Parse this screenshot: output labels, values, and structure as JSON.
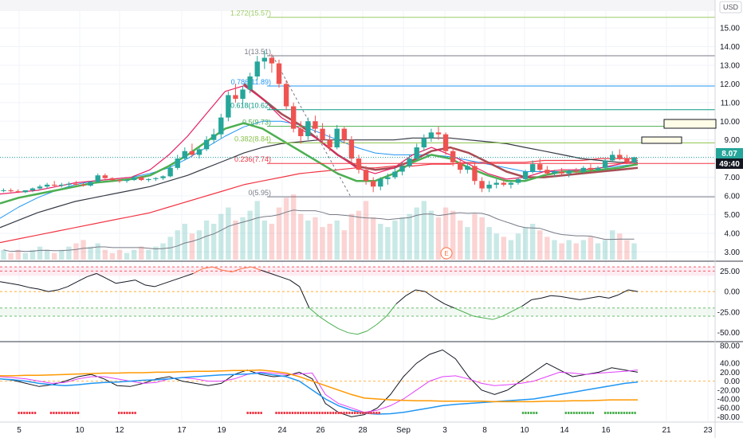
{
  "toolbar": {
    "currency": "USD"
  },
  "colors": {
    "up": "#26a69a",
    "down": "#ef5350",
    "ema_fast": "#e91e63",
    "ema_mid": "#4caf50",
    "ma_blue": "#2196f3",
    "ma_dark": "#363a45",
    "ma_red": "#f23645",
    "ma_brown": "#a84c54",
    "fib_gray": "#787b86",
    "fib_blue": "#2196f3",
    "fib_teal": "#089981",
    "fib_green": "#4caf50",
    "fib_lime": "#8bc34a",
    "fib_red": "#f23645",
    "fib_top": "#9ccc65",
    "rsi": "#131722",
    "rsi_os": "#4caf50",
    "rsi_ob": "#ff7043",
    "osc_black": "#131722",
    "osc_magenta": "#e040fb",
    "osc_blue": "#2196f3",
    "osc_orange": "#ff9800",
    "badge_green": "#26a69a",
    "badge_dark": "#131722"
  },
  "chart_data": [
    {
      "type": "candlestick",
      "pane": "price",
      "x_labels": [
        "5",
        "10",
        "12",
        "17",
        "19",
        "24",
        "26",
        "28",
        "Sep",
        "3",
        "8",
        "10",
        "14",
        "16",
        "21",
        "23"
      ],
      "y_ticks": [
        "3.00",
        "4.00",
        "5.00",
        "6.00",
        "7.00",
        "8.00",
        "9.00",
        "10.00",
        "11.00",
        "12.00",
        "13.00",
        "14.00",
        "15.00"
      ],
      "ylim": [
        2.5,
        15.9
      ],
      "last_price": "8.07",
      "countdown": "49:40",
      "candles_ohlc": [
        [
          6.3,
          6.4,
          6.2,
          6.3
        ],
        [
          6.3,
          6.4,
          6.2,
          6.25
        ],
        [
          6.25,
          6.35,
          6.15,
          6.2
        ],
        [
          6.2,
          6.3,
          6.15,
          6.3
        ],
        [
          6.3,
          6.45,
          6.2,
          6.4
        ],
        [
          6.4,
          6.6,
          6.3,
          6.5
        ],
        [
          6.5,
          6.7,
          6.4,
          6.6
        ],
        [
          6.6,
          6.8,
          6.5,
          6.55
        ],
        [
          6.55,
          6.7,
          6.45,
          6.6
        ],
        [
          6.6,
          6.75,
          6.5,
          6.65
        ],
        [
          6.65,
          6.8,
          6.55,
          6.6
        ],
        [
          6.6,
          6.7,
          6.5,
          6.55
        ],
        [
          6.55,
          6.8,
          6.5,
          6.75
        ],
        [
          6.75,
          7.2,
          6.7,
          7.1
        ],
        [
          7.1,
          7.2,
          6.9,
          6.95
        ],
        [
          6.95,
          7.0,
          6.8,
          6.85
        ],
        [
          6.85,
          6.9,
          6.7,
          6.8
        ],
        [
          6.8,
          6.9,
          6.7,
          6.85
        ],
        [
          6.85,
          7.1,
          6.8,
          7.0
        ],
        [
          7.0,
          7.05,
          6.8,
          6.85
        ],
        [
          6.85,
          6.95,
          6.75,
          6.9
        ],
        [
          6.9,
          7.0,
          6.8,
          6.95
        ],
        [
          6.95,
          7.1,
          6.85,
          7.05
        ],
        [
          7.05,
          7.6,
          7.0,
          7.5
        ],
        [
          7.5,
          8.2,
          7.4,
          8.0
        ],
        [
          8.0,
          8.6,
          7.9,
          8.4
        ],
        [
          8.4,
          8.8,
          8.1,
          8.2
        ],
        [
          8.2,
          8.6,
          8.0,
          8.5
        ],
        [
          8.5,
          9.2,
          8.4,
          9.0
        ],
        [
          9.0,
          9.6,
          8.8,
          9.3
        ],
        [
          9.3,
          10.4,
          9.1,
          10.2
        ],
        [
          10.2,
          11.6,
          10.0,
          11.4
        ],
        [
          11.4,
          12.0,
          11.0,
          11.2
        ],
        [
          11.2,
          11.9,
          10.8,
          11.7
        ],
        [
          11.7,
          12.6,
          11.5,
          12.4
        ],
        [
          12.4,
          13.5,
          12.2,
          13.2
        ],
        [
          13.2,
          13.8,
          12.8,
          13.4
        ],
        [
          13.4,
          13.6,
          12.6,
          13.1
        ],
        [
          13.1,
          13.3,
          11.8,
          12.0
        ],
        [
          12.0,
          12.2,
          10.6,
          10.8
        ],
        [
          10.8,
          11.0,
          9.4,
          9.6
        ],
        [
          9.6,
          10.0,
          8.8,
          9.2
        ],
        [
          9.2,
          10.2,
          9.0,
          10.0
        ],
        [
          10.0,
          10.3,
          9.4,
          9.6
        ],
        [
          9.6,
          9.9,
          8.8,
          9.0
        ],
        [
          9.0,
          9.3,
          8.4,
          8.6
        ],
        [
          8.6,
          9.8,
          8.5,
          9.6
        ],
        [
          9.6,
          9.7,
          8.8,
          9.0
        ],
        [
          9.0,
          9.2,
          7.8,
          8.0
        ],
        [
          8.0,
          8.2,
          7.2,
          7.4
        ],
        [
          7.4,
          7.6,
          6.6,
          6.8
        ],
        [
          6.8,
          7.0,
          6.2,
          6.5
        ],
        [
          6.5,
          7.0,
          6.3,
          6.9
        ],
        [
          6.9,
          7.2,
          6.6,
          7.0
        ],
        [
          7.0,
          7.5,
          6.9,
          7.3
        ],
        [
          7.3,
          7.8,
          7.1,
          7.6
        ],
        [
          7.6,
          8.2,
          7.5,
          8.0
        ],
        [
          8.0,
          8.8,
          7.9,
          8.6
        ],
        [
          8.6,
          9.3,
          8.4,
          9.1
        ],
        [
          9.1,
          9.6,
          8.9,
          9.4
        ],
        [
          9.4,
          9.7,
          9.0,
          9.3
        ],
        [
          9.3,
          9.4,
          8.2,
          8.4
        ],
        [
          8.4,
          8.6,
          7.6,
          7.8
        ],
        [
          7.8,
          8.0,
          7.2,
          7.4
        ],
        [
          7.4,
          7.8,
          7.2,
          7.6
        ],
        [
          7.6,
          7.8,
          6.6,
          6.8
        ],
        [
          6.8,
          7.0,
          6.2,
          6.4
        ],
        [
          6.4,
          6.8,
          6.2,
          6.6
        ],
        [
          6.6,
          6.9,
          6.4,
          6.7
        ],
        [
          6.7,
          6.9,
          6.5,
          6.6
        ],
        [
          6.6,
          6.8,
          6.4,
          6.7
        ],
        [
          6.7,
          7.0,
          6.6,
          6.9
        ],
        [
          6.9,
          7.4,
          6.8,
          7.3
        ],
        [
          7.3,
          7.9,
          7.2,
          7.7
        ],
        [
          7.7,
          8.0,
          7.3,
          7.4
        ],
        [
          7.4,
          7.6,
          7.1,
          7.2
        ],
        [
          7.2,
          7.4,
          7.0,
          7.3
        ],
        [
          7.3,
          7.5,
          7.1,
          7.2
        ],
        [
          7.2,
          7.4,
          7.0,
          7.35
        ],
        [
          7.35,
          7.5,
          7.2,
          7.3
        ],
        [
          7.3,
          7.6,
          7.2,
          7.5
        ],
        [
          7.5,
          7.7,
          7.3,
          7.4
        ],
        [
          7.4,
          7.6,
          7.3,
          7.5
        ],
        [
          7.5,
          8.0,
          7.4,
          7.9
        ],
        [
          7.9,
          8.4,
          7.8,
          8.2
        ],
        [
          8.2,
          8.5,
          7.9,
          8.0
        ],
        [
          8.0,
          8.2,
          7.7,
          7.8
        ],
        [
          7.8,
          8.1,
          7.7,
          8.07
        ]
      ],
      "fib_levels": [
        {
          "label": "1.272(15.57)",
          "value": 15.57
        },
        {
          "label": "1(13.51)",
          "value": 13.51
        },
        {
          "label": "0.786(11.89)",
          "value": 11.89
        },
        {
          "label": "0.618(10.62)",
          "value": 10.62
        },
        {
          "label": "0.5(9.73)",
          "value": 9.73
        },
        {
          "label": "0.382(8.84)",
          "value": 8.84
        },
        {
          "label": "0.236(7.74)",
          "value": 7.74
        },
        {
          "label": "0(5.95)",
          "value": 5.95
        }
      ],
      "event_marker": "E",
      "moving_averages": {
        "ema_fast": [
          6.1,
          6.2,
          6.3,
          6.5,
          6.7,
          6.8,
          6.9,
          7.0,
          7.4,
          8.2,
          9.2,
          10.4,
          11.6,
          11.9,
          11.2,
          10.2,
          9.6,
          9.0,
          8.2,
          7.5,
          7.2,
          7.5,
          8.2,
          8.6,
          8.2,
          7.7,
          7.2,
          6.9,
          7.0,
          7.3,
          7.4,
          7.4,
          7.5,
          7.7,
          7.9
        ],
        "ema_mid": [
          5.6,
          5.9,
          6.1,
          6.3,
          6.5,
          6.7,
          6.8,
          6.9,
          7.1,
          7.6,
          8.2,
          8.9,
          9.6,
          9.9,
          9.6,
          9.0,
          8.4,
          7.8,
          7.2,
          6.8,
          6.8,
          7.2,
          7.8,
          8.2,
          8.0,
          7.5,
          7.1,
          6.8,
          6.8,
          7.1,
          7.3,
          7.3,
          7.4,
          7.5,
          7.7
        ],
        "ma_blue": [
          4.8,
          5.4,
          5.9,
          6.3,
          6.6,
          6.8,
          6.9,
          7.0,
          7.2,
          7.5,
          8.0,
          8.6,
          9.2,
          9.7,
          10.0,
          10.0,
          9.8,
          9.4,
          9.0,
          8.6,
          8.3,
          8.2,
          8.2,
          8.2,
          8.1,
          7.9,
          7.7,
          7.5,
          7.3,
          7.3,
          7.3,
          7.4,
          7.5,
          7.6,
          7.7
        ],
        "ma_dark": [
          4.3,
          4.7,
          5.1,
          5.4,
          5.7,
          5.9,
          6.1,
          6.3,
          6.5,
          6.8,
          7.1,
          7.5,
          7.9,
          8.3,
          8.6,
          8.8,
          8.9,
          9.0,
          9.0,
          9.0,
          9.0,
          9.0,
          9.1,
          9.1,
          9.1,
          9.0,
          8.9,
          8.8,
          8.6,
          8.4,
          8.2,
          8.0,
          7.9,
          7.8,
          7.8
        ],
        "ma_red": [
          3.5,
          3.7,
          3.9,
          4.1,
          4.3,
          4.5,
          4.7,
          4.9,
          5.1,
          5.4,
          5.7,
          6.0,
          6.3,
          6.6,
          6.8,
          7.0,
          7.2,
          7.3,
          7.4,
          7.5,
          7.5,
          7.6,
          7.6,
          7.7,
          7.7,
          7.8,
          7.8,
          7.8,
          7.8,
          7.9,
          7.9,
          7.9,
          8.0,
          8.0,
          8.0
        ],
        "ma_brown": [
          null,
          null,
          null,
          null,
          null,
          null,
          null,
          null,
          null,
          null,
          null,
          null,
          null,
          12.0,
          11.2,
          10.4,
          9.8,
          9.0,
          8.2,
          7.6,
          7.4,
          7.5,
          7.9,
          8.4,
          8.6,
          8.3,
          7.8,
          7.3,
          7.0,
          7.0,
          7.1,
          7.2,
          7.3,
          7.4,
          7.5
        ]
      },
      "volume": [
        0.3,
        0.2,
        0.3,
        0.2,
        0.3,
        0.4,
        0.3,
        0.2,
        0.3,
        0.4,
        0.5,
        0.6,
        0.4,
        0.5,
        0.3,
        0.2,
        0.3,
        0.2,
        0.3,
        0.4,
        0.3,
        0.4,
        0.5,
        0.7,
        0.9,
        1.1,
        0.8,
        0.9,
        1.2,
        1.1,
        1.4,
        1.6,
        1.2,
        1.3,
        1.5,
        1.8,
        1.2,
        1.1,
        1.6,
        1.9,
        2.0,
        1.4,
        1.2,
        1.3,
        1.0,
        1.1,
        1.2,
        0.9,
        1.4,
        1.5,
        1.8,
        1.3,
        1.1,
        1.0,
        1.2,
        1.3,
        1.4,
        1.6,
        1.8,
        1.5,
        1.3,
        1.6,
        1.5,
        1.2,
        1.0,
        1.4,
        1.3,
        1.0,
        0.8,
        0.7,
        0.6,
        0.8,
        1.0,
        1.1,
        0.9,
        0.7,
        0.6,
        0.5,
        0.6,
        0.5,
        0.6,
        0.7,
        0.5,
        0.6,
        0.9,
        0.8,
        0.6,
        0.5
      ]
    },
    {
      "type": "line",
      "pane": "rsi",
      "y_ticks": [
        "25.00",
        "0.00",
        "-25.00",
        "-50.00"
      ],
      "ylim": [
        -60,
        35
      ],
      "levels": [
        30,
        25,
        0,
        -20,
        -30
      ],
      "values": [
        12,
        10,
        8,
        5,
        3,
        0,
        2,
        6,
        12,
        18,
        22,
        16,
        10,
        12,
        14,
        8,
        6,
        10,
        14,
        18,
        22,
        28,
        30,
        26,
        24,
        28,
        30,
        26,
        22,
        18,
        14,
        6,
        -20,
        -30,
        -38,
        -45,
        -50,
        -52,
        -48,
        -40,
        -30,
        -15,
        -5,
        2,
        0,
        -8,
        -15,
        -20,
        -25,
        -30,
        -32,
        -34,
        -30,
        -24,
        -18,
        -10,
        -8,
        -5,
        -6,
        -8,
        -10,
        -8,
        -6,
        -8,
        -4,
        2,
        0
      ]
    },
    {
      "type": "line",
      "pane": "oscillators",
      "y_ticks": [
        "80.00",
        "40.00",
        "20.00",
        "0.00",
        "-20.00",
        "-40.00",
        "-60.00",
        "-80.00"
      ],
      "ylim": [
        -90,
        85
      ],
      "series": [
        {
          "color_key": "osc_black",
          "values": [
            5,
            2,
            -5,
            -12,
            -8,
            0,
            10,
            15,
            5,
            -10,
            -12,
            -5,
            5,
            10,
            0,
            -5,
            -10,
            -5,
            15,
            25,
            15,
            10,
            12,
            20,
            5,
            -50,
            -70,
            -80,
            -75,
            -60,
            -30,
            10,
            40,
            60,
            70,
            50,
            10,
            -20,
            -30,
            -20,
            0,
            20,
            40,
            25,
            10,
            15,
            20,
            30,
            25,
            20
          ]
        },
        {
          "color_key": "osc_magenta",
          "values": [
            10,
            8,
            5,
            0,
            -5,
            -3,
            5,
            10,
            10,
            5,
            0,
            -5,
            -3,
            5,
            8,
            5,
            0,
            0,
            5,
            15,
            20,
            18,
            15,
            16,
            18,
            -30,
            -50,
            -60,
            -70,
            -65,
            -55,
            -40,
            -20,
            0,
            10,
            12,
            5,
            -5,
            -10,
            -8,
            -5,
            0,
            10,
            20,
            18,
            15,
            18,
            20,
            22,
            25
          ]
        },
        {
          "color_key": "osc_blue",
          "values": [
            5,
            3,
            0,
            -5,
            -8,
            -10,
            -8,
            -5,
            -3,
            -2,
            0,
            2,
            3,
            5,
            8,
            10,
            12,
            14,
            15,
            16,
            18,
            14,
            10,
            0,
            -20,
            -40,
            -55,
            -65,
            -72,
            -74,
            -73,
            -70,
            -65,
            -60,
            -55,
            -52,
            -50,
            -48,
            -46,
            -44,
            -42,
            -40,
            -35,
            -30,
            -25,
            -20,
            -15,
            -10,
            -5,
            -2
          ]
        },
        {
          "color_key": "osc_orange",
          "values": [
            12,
            12,
            13,
            13,
            14,
            15,
            16,
            17,
            18,
            18,
            19,
            19,
            20,
            20,
            21,
            22,
            22,
            23,
            24,
            24,
            25,
            22,
            18,
            10,
            0,
            -10,
            -20,
            -30,
            -38,
            -40,
            -42,
            -43,
            -44,
            -44,
            -45,
            -45,
            -45,
            -45,
            -46,
            -46,
            -46,
            -46,
            -45,
            -45,
            -44,
            -44,
            -43,
            -42,
            -42,
            -42
          ]
        }
      ],
      "signal_dots": [
        {
          "color": "#f23645",
          "from": 0.025,
          "to": 0.05
        },
        {
          "color": "#f23645",
          "from": 0.07,
          "to": 0.11
        },
        {
          "color": "#f23645",
          "from": 0.165,
          "to": 0.19
        },
        {
          "color": "#f23645",
          "from": 0.345,
          "to": 0.365
        },
        {
          "color": "#f23645",
          "from": 0.385,
          "to": 0.53
        },
        {
          "color": "#4caf50",
          "from": 0.73,
          "to": 0.75
        },
        {
          "color": "#4caf50",
          "from": 0.79,
          "to": 0.83
        },
        {
          "color": "#4caf50",
          "from": 0.845,
          "to": 0.89
        }
      ]
    }
  ]
}
